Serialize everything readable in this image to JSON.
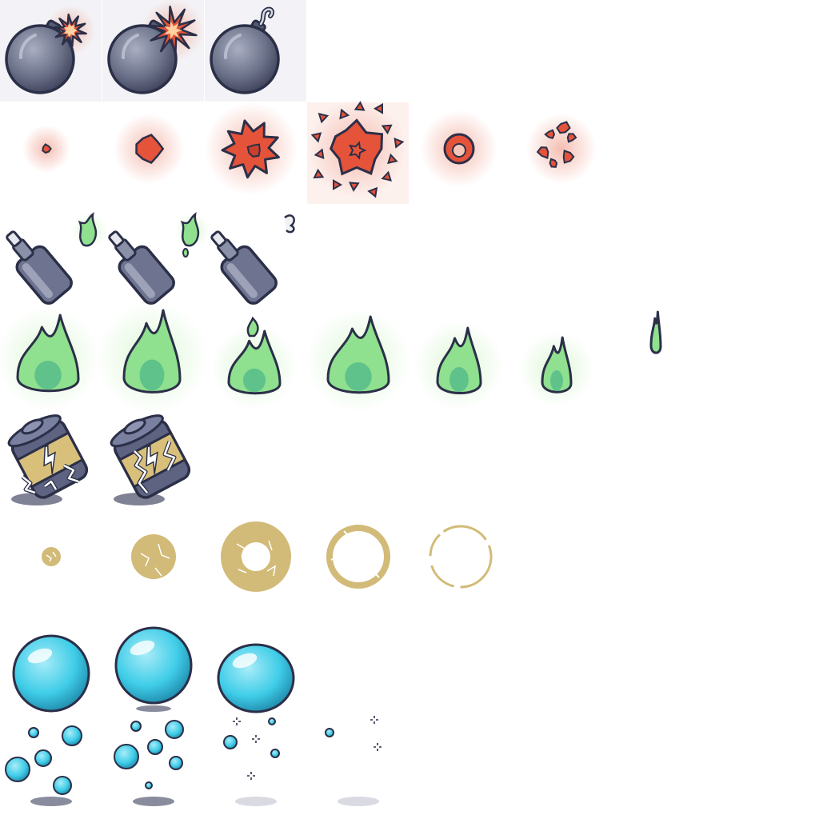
{
  "sprite_sheet": {
    "palette": {
      "outline": "#2b2f48",
      "bomb_body": "#6b7188",
      "bomb_highlight": "#a9aec2",
      "explosion_red": "#e5533a",
      "explosion_glow": "#f3b2a4",
      "acid_green": "#8fe08f",
      "acid_green_dark": "#4fb88a",
      "acid_glow": "#d6f5cf",
      "battery_gold": "#d9c07a",
      "electric_ring": "#d2bb78",
      "bubble_cyan": "#3fcde8",
      "bubble_light": "#a9ecf8",
      "shadow": "#3a3f5c"
    },
    "rows": [
      {
        "name": "bomb",
        "frames": [
          {
            "variant": "lit-small"
          },
          {
            "variant": "lit-large"
          },
          {
            "variant": "unlit"
          }
        ]
      },
      {
        "name": "explosion",
        "frames": [
          {
            "stage": 1
          },
          {
            "stage": 2
          },
          {
            "stage": 3
          },
          {
            "stage": 4
          },
          {
            "stage": 5
          },
          {
            "stage": 6
          }
        ]
      },
      {
        "name": "acid-bottle",
        "frames": [
          {
            "variant": "flame"
          },
          {
            "variant": "flame-drip"
          },
          {
            "variant": "smoke"
          }
        ]
      },
      {
        "name": "green-fire",
        "frames": [
          {
            "stage": 1
          },
          {
            "stage": 2
          },
          {
            "stage": 3
          },
          {
            "stage": 4
          },
          {
            "stage": 5
          },
          {
            "stage": 6
          },
          {
            "stage": 7
          }
        ]
      },
      {
        "name": "battery",
        "frames": [
          {
            "variant": "charged"
          },
          {
            "variant": "sparking"
          }
        ]
      },
      {
        "name": "electric-ring",
        "frames": [
          {
            "stage": 1
          },
          {
            "stage": 2
          },
          {
            "stage": 3
          },
          {
            "stage": 4
          },
          {
            "stage": 5
          }
        ]
      },
      {
        "name": "bubble",
        "frames": [
          {
            "variant": "rest"
          },
          {
            "variant": "rise"
          },
          {
            "variant": "squash"
          }
        ]
      },
      {
        "name": "bubble-pop",
        "frames": [
          {
            "stage": 1
          },
          {
            "stage": 2
          },
          {
            "stage": 3
          },
          {
            "stage": 4
          }
        ]
      }
    ]
  }
}
